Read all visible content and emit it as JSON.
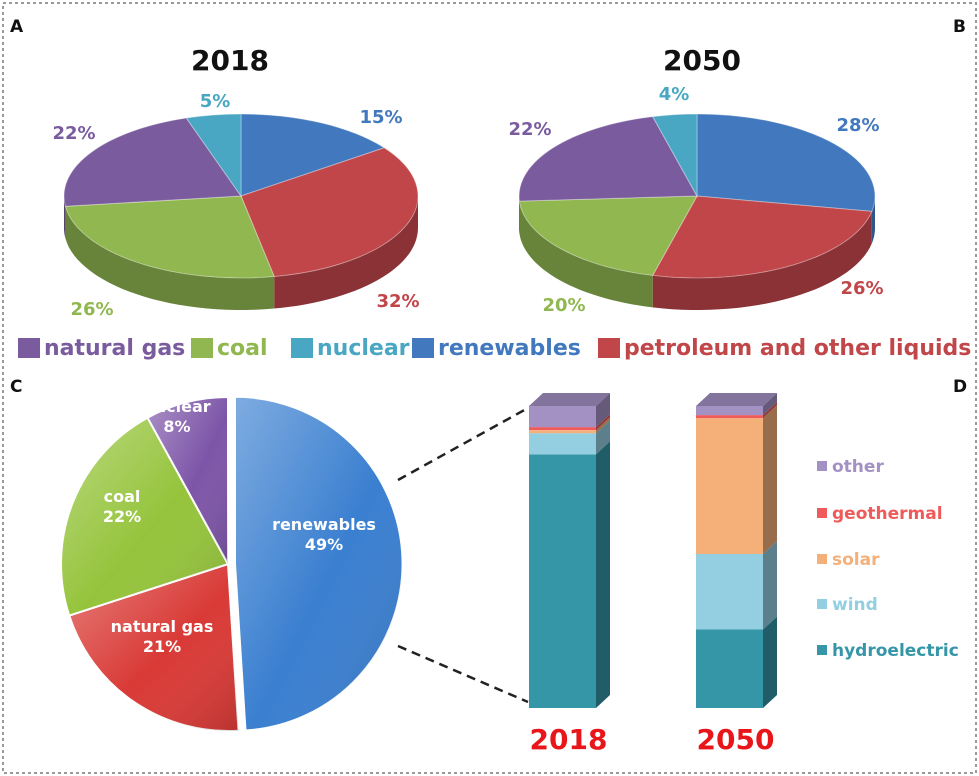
{
  "panels": {
    "a": "A",
    "b": "B",
    "c": "C",
    "d": "D"
  },
  "colors": {
    "natural gas": "#7a5c9e",
    "coal": "#90b750",
    "nuclear": "#4aa7c3",
    "renewables": "#4178be",
    "petroleum and other liquids": "#c0464a"
  },
  "chart_data": [
    {
      "type": "pie",
      "title": "2018",
      "labels": [
        "renewables",
        "petroleum and other liquids",
        "coal",
        "natural gas",
        "nuclear"
      ],
      "values": [
        15,
        32,
        26,
        22,
        5
      ]
    },
    {
      "type": "pie",
      "title": "2050",
      "labels": [
        "renewables",
        "petroleum and other liquids",
        "coal",
        "natural gas",
        "nuclear"
      ],
      "values": [
        28,
        26,
        20,
        22,
        4
      ]
    },
    {
      "type": "pie",
      "title": "",
      "labels": [
        "renewables",
        "natural gas",
        "coal",
        "nuclear"
      ],
      "values": [
        49,
        21,
        22,
        8
      ],
      "colors": [
        "#3a7fd0",
        "#d93a36",
        "#95c43c",
        "#7d55a8"
      ]
    },
    {
      "type": "bar",
      "stacked": true,
      "categories": [
        "2018",
        "2050"
      ],
      "series": [
        {
          "name": "hydroelectric",
          "color": "#3596a8",
          "values": [
            84,
            26
          ]
        },
        {
          "name": "wind",
          "color": "#93cfe0",
          "values": [
            7,
            25
          ]
        },
        {
          "name": "solar",
          "color": "#f5b07a",
          "values": [
            1,
            45
          ]
        },
        {
          "name": "geothermal",
          "color": "#ef5a5a",
          "values": [
            1,
            1
          ]
        },
        {
          "name": "other",
          "color": "#a391c4",
          "values": [
            7,
            3
          ]
        }
      ],
      "ylim": [
        0,
        100
      ]
    }
  ],
  "legend_order": [
    "natural gas",
    "coal",
    "nuclear",
    "renewables",
    "petroleum and other liquids"
  ]
}
